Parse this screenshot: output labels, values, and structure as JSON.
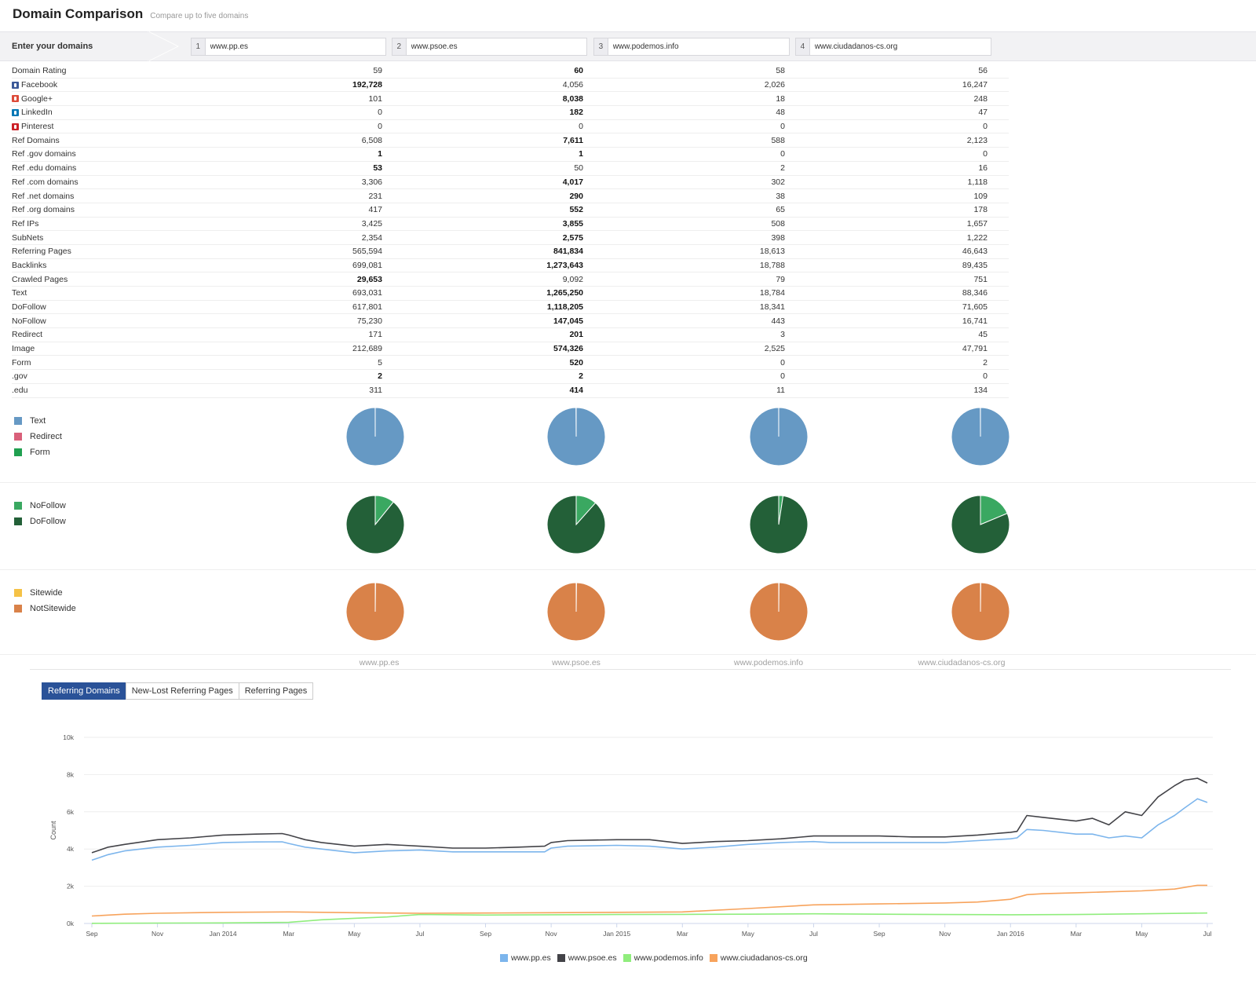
{
  "header": {
    "title": "Domain Comparison",
    "subtitle": "Compare up to five domains"
  },
  "domain_bar": {
    "label": "Enter your domains",
    "domains": [
      {
        "num": "1",
        "value": "www.pp.es"
      },
      {
        "num": "2",
        "value": "www.psoe.es"
      },
      {
        "num": "3",
        "value": "www.podemos.info"
      },
      {
        "num": "4",
        "value": "www.ciudadanos-cs.org"
      }
    ]
  },
  "metrics": [
    {
      "name": "Domain Rating",
      "icon": "",
      "values": [
        "59",
        "60",
        "58",
        "56"
      ],
      "bold": 1
    },
    {
      "name": "Facebook",
      "icon": "fb",
      "values": [
        "192,728",
        "4,056",
        "2,026",
        "16,247"
      ],
      "bold": 0
    },
    {
      "name": "Google+",
      "icon": "gp",
      "values": [
        "101",
        "8,038",
        "18",
        "248"
      ],
      "bold": 1
    },
    {
      "name": "LinkedIn",
      "icon": "li",
      "values": [
        "0",
        "182",
        "48",
        "47"
      ],
      "bold": 1
    },
    {
      "name": "Pinterest",
      "icon": "pi",
      "values": [
        "0",
        "0",
        "0",
        "0"
      ],
      "bold": -1
    },
    {
      "name": "Ref Domains",
      "icon": "",
      "values": [
        "6,508",
        "7,611",
        "588",
        "2,123"
      ],
      "bold": 1
    },
    {
      "name": "Ref .gov domains",
      "icon": "",
      "values": [
        "1",
        "1",
        "0",
        "0"
      ],
      "bold": 0,
      "bold2": 1
    },
    {
      "name": "Ref .edu domains",
      "icon": "",
      "values": [
        "53",
        "50",
        "2",
        "16"
      ],
      "bold": 0
    },
    {
      "name": "Ref .com domains",
      "icon": "",
      "values": [
        "3,306",
        "4,017",
        "302",
        "1,118"
      ],
      "bold": 1
    },
    {
      "name": "Ref .net domains",
      "icon": "",
      "values": [
        "231",
        "290",
        "38",
        "109"
      ],
      "bold": 1
    },
    {
      "name": "Ref .org domains",
      "icon": "",
      "values": [
        "417",
        "552",
        "65",
        "178"
      ],
      "bold": 1
    },
    {
      "name": "Ref IPs",
      "icon": "",
      "values": [
        "3,425",
        "3,855",
        "508",
        "1,657"
      ],
      "bold": 1
    },
    {
      "name": "SubNets",
      "icon": "",
      "values": [
        "2,354",
        "2,575",
        "398",
        "1,222"
      ],
      "bold": 1
    },
    {
      "name": "Referring Pages",
      "icon": "",
      "values": [
        "565,594",
        "841,834",
        "18,613",
        "46,643"
      ],
      "bold": 1
    },
    {
      "name": "Backlinks",
      "icon": "",
      "values": [
        "699,081",
        "1,273,643",
        "18,788",
        "89,435"
      ],
      "bold": 1
    },
    {
      "name": "Crawled Pages",
      "icon": "",
      "values": [
        "29,653",
        "9,092",
        "79",
        "751"
      ],
      "bold": 0
    },
    {
      "name": "Text",
      "icon": "",
      "values": [
        "693,031",
        "1,265,250",
        "18,784",
        "88,346"
      ],
      "bold": 1
    },
    {
      "name": "DoFollow",
      "icon": "",
      "values": [
        "617,801",
        "1,118,205",
        "18,341",
        "71,605"
      ],
      "bold": 1
    },
    {
      "name": "NoFollow",
      "icon": "",
      "values": [
        "75,230",
        "147,045",
        "443",
        "16,741"
      ],
      "bold": 1
    },
    {
      "name": "Redirect",
      "icon": "",
      "values": [
        "171",
        "201",
        "3",
        "45"
      ],
      "bold": 1
    },
    {
      "name": "Image",
      "icon": "",
      "values": [
        "212,689",
        "574,326",
        "2,525",
        "47,791"
      ],
      "bold": 1
    },
    {
      "name": "Form",
      "icon": "",
      "values": [
        "5",
        "520",
        "0",
        "2"
      ],
      "bold": 1
    },
    {
      "name": ".gov",
      "icon": "",
      "values": [
        "2",
        "2",
        "0",
        "0"
      ],
      "bold": 0,
      "bold2": 1
    },
    {
      "name": ".edu",
      "icon": "",
      "values": [
        "311",
        "414",
        "11",
        "134"
      ],
      "bold": 1
    }
  ],
  "pie_groups": [
    {
      "id": "type",
      "legend": [
        {
          "label": "Text",
          "color": "#6699c4"
        },
        {
          "label": "Redirect",
          "color": "#d9607a"
        },
        {
          "label": "Form",
          "color": "#20a050"
        }
      ],
      "fractions": [
        [
          0.9998,
          0.0002,
          0.0
        ],
        [
          0.9998,
          0.0002,
          0.0004
        ],
        [
          0.9998,
          0.0002,
          0.0
        ],
        [
          0.9995,
          0.0005,
          0.0
        ]
      ]
    },
    {
      "id": "follow",
      "legend": [
        {
          "label": "NoFollow",
          "color": "#3aa861"
        },
        {
          "label": "DoFollow",
          "color": "#236038"
        }
      ],
      "fractions": [
        [
          0.108,
          0.892
        ],
        [
          0.116,
          0.884
        ],
        [
          0.024,
          0.976
        ],
        [
          0.187,
          0.813
        ]
      ]
    },
    {
      "id": "sitewide",
      "legend": [
        {
          "label": "Sitewide",
          "color": "#f5c246"
        },
        {
          "label": "NotSitewide",
          "color": "#d98249"
        }
      ],
      "fractions": [
        [
          0.002,
          0.998
        ],
        [
          0.002,
          0.998
        ],
        [
          0.002,
          0.998
        ],
        [
          0.002,
          0.998
        ]
      ]
    }
  ],
  "pie_domain_labels": [
    "www.pp.es",
    "www.psoe.es",
    "www.podemos.info",
    "www.ciudadanos-cs.org"
  ],
  "tabs": [
    "Referring Domains",
    "New-Lost Referring Pages",
    "Referring Pages"
  ],
  "chart_data": {
    "type": "line",
    "ylabel": "Count",
    "ylim": [
      0,
      10000
    ],
    "yticks": [
      "0k",
      "2k",
      "4k",
      "6k",
      "8k",
      "10k"
    ],
    "xticks": [
      "Sep",
      "Nov",
      "Jan 2014",
      "Mar",
      "May",
      "Jul",
      "Sep",
      "Nov",
      "Jan 2015",
      "Mar",
      "May",
      "Jul",
      "Sep",
      "Nov",
      "Jan 2016",
      "Mar",
      "May",
      "Jul"
    ],
    "x_months": [
      0,
      2,
      4,
      6,
      8,
      10,
      12,
      14,
      16,
      18,
      20,
      22,
      24,
      26,
      28,
      30,
      32,
      34
    ],
    "series": [
      {
        "name": "www.pp.es",
        "color": "#7cb5ec",
        "x": [
          0,
          0.5,
          1,
          2,
          3,
          4,
          5,
          5.8,
          6,
          6.5,
          7,
          8,
          9,
          10,
          11,
          12,
          13,
          13.8,
          14,
          14.5,
          16,
          17,
          18,
          18.5,
          19,
          20,
          21,
          22,
          22.5,
          24,
          25,
          26,
          27,
          28,
          28.2,
          28.5,
          29,
          30,
          30.5,
          31,
          31.5,
          32,
          32.5,
          33,
          33.3,
          33.7,
          34
        ],
        "values": [
          3400,
          3700,
          3900,
          4100,
          4200,
          4350,
          4380,
          4390,
          4300,
          4100,
          4000,
          3800,
          3900,
          3950,
          3850,
          3850,
          3850,
          3850,
          4050,
          4150,
          4200,
          4150,
          4000,
          4050,
          4100,
          4250,
          4350,
          4400,
          4350,
          4350,
          4350,
          4350,
          4450,
          4550,
          4600,
          5050,
          5000,
          4800,
          4800,
          4600,
          4700,
          4600,
          5300,
          5800,
          6200,
          6700,
          6500
        ]
      },
      {
        "name": "www.psoe.es",
        "color": "#434348",
        "x": [
          0,
          0.5,
          1,
          2,
          3,
          4,
          5,
          5.8,
          6,
          6.5,
          7,
          8,
          9,
          10,
          11,
          12,
          13,
          13.8,
          14,
          14.5,
          16,
          17,
          18,
          18.5,
          19,
          20,
          21,
          22,
          22.5,
          24,
          25,
          26,
          27,
          28,
          28.2,
          28.5,
          29,
          30,
          30.5,
          31,
          31.5,
          32,
          32.5,
          33,
          33.3,
          33.7,
          34
        ],
        "values": [
          3800,
          4100,
          4250,
          4500,
          4600,
          4750,
          4800,
          4830,
          4750,
          4500,
          4350,
          4150,
          4250,
          4150,
          4050,
          4050,
          4100,
          4150,
          4350,
          4450,
          4500,
          4500,
          4300,
          4350,
          4400,
          4450,
          4550,
          4700,
          4700,
          4700,
          4650,
          4650,
          4750,
          4900,
          4950,
          5800,
          5700,
          5500,
          5650,
          5300,
          6000,
          5800,
          6800,
          7400,
          7700,
          7800,
          7550
        ]
      },
      {
        "name": "www.podemos.info",
        "color": "#90ed7d",
        "x": [
          0,
          2,
          4,
          6,
          7,
          8,
          9,
          10,
          12,
          14,
          16,
          18,
          20,
          22,
          24,
          26,
          28,
          30,
          32,
          34
        ],
        "values": [
          10,
          20,
          30,
          60,
          200,
          280,
          350,
          480,
          450,
          470,
          480,
          490,
          500,
          520,
          500,
          480,
          470,
          480,
          520,
          560
        ]
      },
      {
        "name": "www.ciudadanos-cs.org",
        "color": "#f7a35c",
        "x": [
          0,
          1,
          2,
          4,
          6,
          8,
          10,
          12,
          14,
          16,
          18,
          20,
          22,
          24,
          26,
          27,
          28,
          28.5,
          29,
          30,
          31,
          32,
          33,
          33.7,
          34
        ],
        "values": [
          400,
          500,
          550,
          600,
          620,
          580,
          550,
          560,
          580,
          600,
          620,
          800,
          1000,
          1050,
          1100,
          1150,
          1300,
          1550,
          1600,
          1650,
          1700,
          1750,
          1850,
          2050,
          2050
        ]
      }
    ]
  }
}
